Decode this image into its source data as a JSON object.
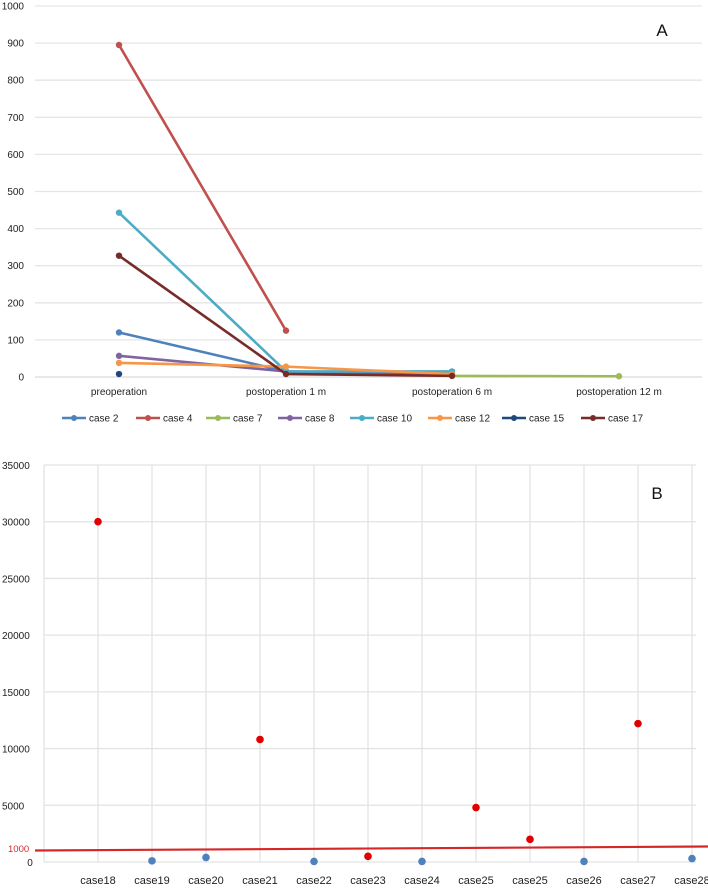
{
  "chart_data": [
    {
      "type": "line",
      "panel_label": "A",
      "title": "",
      "xlabel": "",
      "ylabel": "",
      "ylim": [
        0,
        1000
      ],
      "yticks": [
        0,
        100,
        200,
        300,
        400,
        500,
        600,
        700,
        800,
        900,
        1000
      ],
      "grid": "horizontal",
      "legend_position": "bottom",
      "categories": [
        "preoperation",
        "postoperation 1 m",
        "postoperation 6 m",
        "postoperation 12 m"
      ],
      "series": [
        {
          "name": "case 2",
          "color": "#4f81bd",
          "values": [
            120,
            15,
            null,
            null
          ]
        },
        {
          "name": "case 4",
          "color": "#c0504d",
          "values": [
            895,
            125,
            null,
            null
          ]
        },
        {
          "name": "case 7",
          "color": "#9bbb59",
          "values": [
            null,
            null,
            3,
            2
          ]
        },
        {
          "name": "case 8",
          "color": "#8064a2",
          "values": [
            57,
            15,
            5,
            null
          ]
        },
        {
          "name": "case 10",
          "color": "#4bacc6",
          "values": [
            443,
            15,
            15,
            null
          ]
        },
        {
          "name": "case 12",
          "color": "#f79646",
          "values": [
            38,
            28,
            8,
            null
          ]
        },
        {
          "name": "case 15",
          "color": "#1f497d",
          "values": [
            8,
            null,
            null,
            null
          ]
        },
        {
          "name": "case 17",
          "color": "#772c2a",
          "values": [
            327,
            8,
            3,
            null
          ]
        }
      ]
    },
    {
      "type": "scatter",
      "panel_label": "B",
      "title": "",
      "xlabel": "",
      "ylabel": "",
      "ylim": [
        0,
        35000
      ],
      "yticks": [
        0,
        5000,
        10000,
        15000,
        20000,
        25000,
        30000,
        35000
      ],
      "grid": "both",
      "reference_line": {
        "value": 1000,
        "label": "1000",
        "color": "#d62728"
      },
      "categories": [
        "case18",
        "case19",
        "case20",
        "case21",
        "case22",
        "case23",
        "case24",
        "case25",
        "case25",
        "case26",
        "case27",
        "case28"
      ],
      "values": [
        30000,
        100,
        400,
        10800,
        50,
        500,
        50,
        4800,
        2000,
        50,
        12200,
        300
      ],
      "point_colors": [
        "#e00000",
        "#4f81bd",
        "#4f81bd",
        "#e00000",
        "#4f81bd",
        "#e00000",
        "#4f81bd",
        "#e00000",
        "#e00000",
        "#4f81bd",
        "#e00000",
        "#4f81bd"
      ]
    }
  ]
}
